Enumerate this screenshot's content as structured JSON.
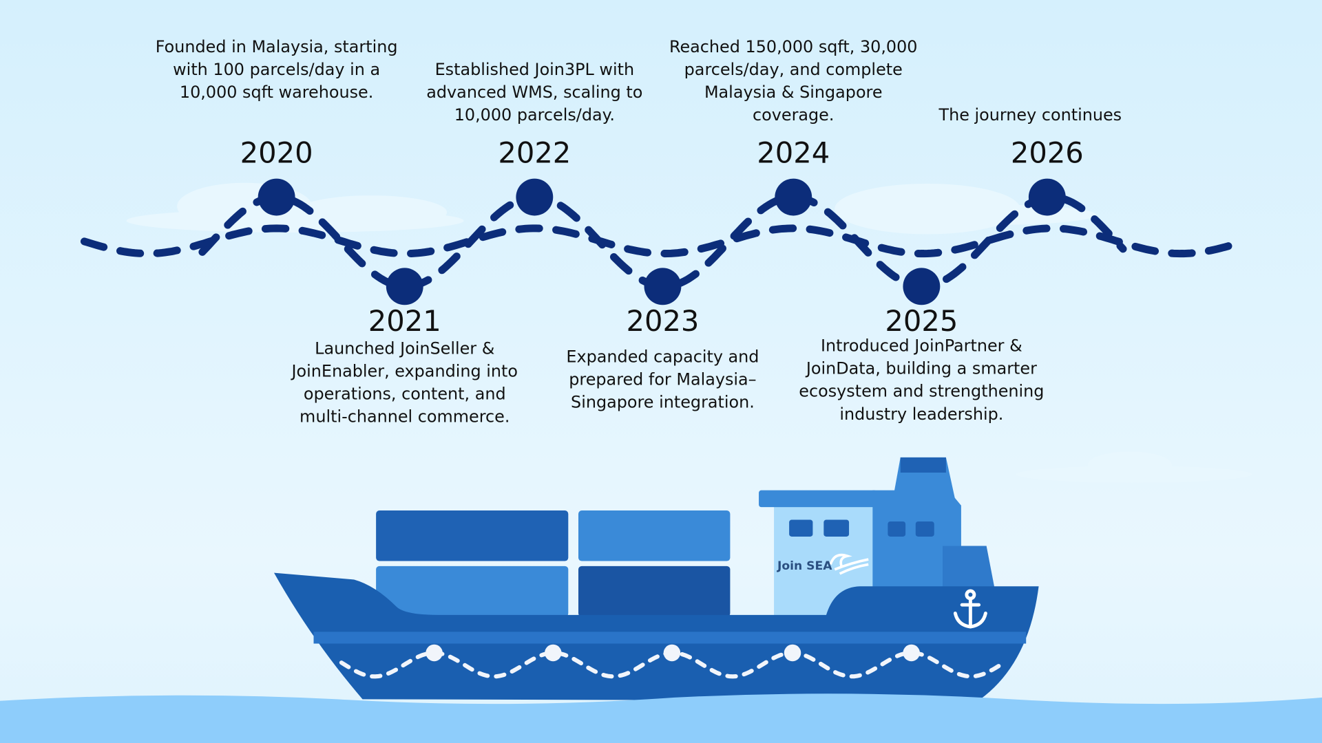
{
  "timeline": [
    {
      "year": "2020",
      "text": "Founded in Malaysia, starting with 100 parcels/day in a 10,000 sqft warehouse.",
      "position": "top"
    },
    {
      "year": "2021",
      "text": "Launched JoinSeller & JoinEnabler, expanding into operations, content, and multi-channel commerce.",
      "position": "bottom"
    },
    {
      "year": "2022",
      "text": "Established Join3PL with advanced WMS, scaling to 10,000 parcels/day.",
      "position": "top"
    },
    {
      "year": "2023",
      "text": "Expanded capacity and prepared for Malaysia–Singapore integration.",
      "position": "bottom"
    },
    {
      "year": "2024",
      "text": "Reached 150,000 sqft, 30,000 parcels/day, and complete Malaysia & Singapore coverage.",
      "position": "top"
    },
    {
      "year": "2025",
      "text": "Introduced JoinPartner & JoinData, building a smarter ecosystem and strengthening industry leadership.",
      "position": "bottom"
    },
    {
      "year": "2026",
      "text": "The journey continues",
      "position": "top"
    }
  ],
  "ship": {
    "brand": "Join SEA",
    "icon": "anchor-icon"
  },
  "colors": {
    "node": "#0c2d7a",
    "ship_hull": "#1a5fb0",
    "water": "#8ecdfb",
    "container_light": "#3a8ad8",
    "container_dark": "#1f62b4"
  }
}
